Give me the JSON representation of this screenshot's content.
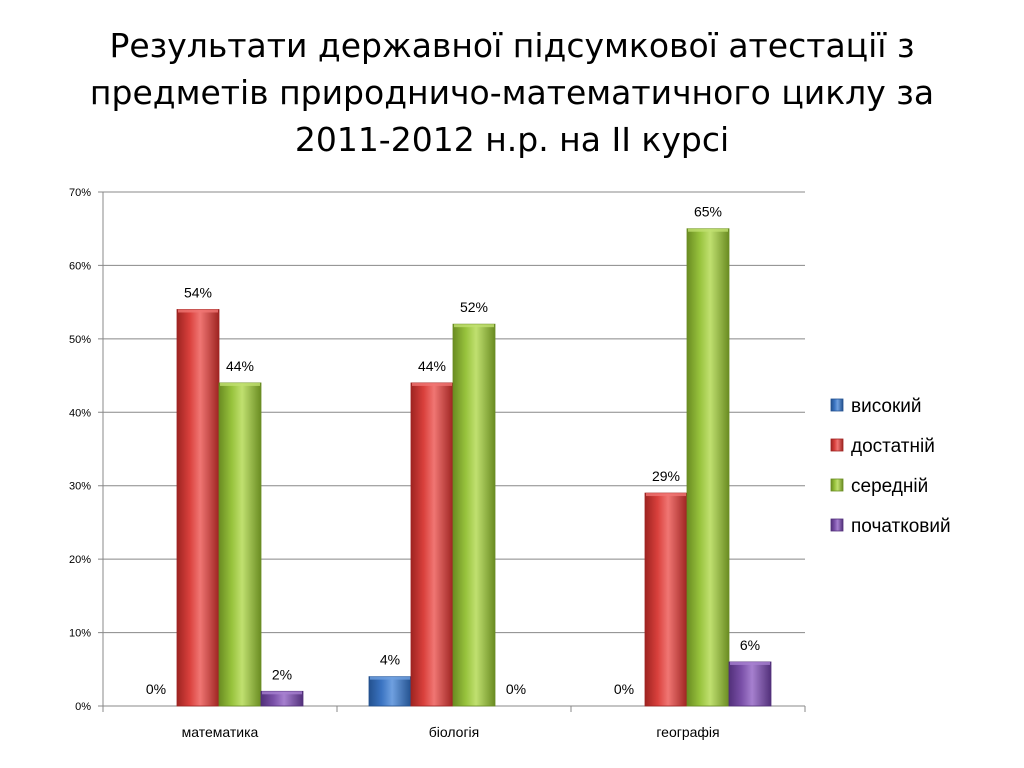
{
  "slide": {
    "title_lines": [
      "Результати державної підсумкової атестації  з",
      "предметів природничо-математичного циклу за",
      "2011-2012 н.р. на ІІ курсі"
    ]
  },
  "colors": {
    "series": [
      "#3b74c2",
      "#d9403c",
      "#97c23c",
      "#7a50a8"
    ],
    "series_dark": [
      "#23518f",
      "#9e2421",
      "#6a8c22",
      "#52307a"
    ],
    "series_light": [
      "#6fa0e0",
      "#f07673",
      "#c0e070",
      "#a680cf"
    ],
    "grid": "#888888",
    "axis": "#888888"
  },
  "chart_data": {
    "type": "bar",
    "title": "Результати державної підсумкової атестації  з предметів природничо-математичного циклу за 2011-2012 н.р. на ІІ курсі",
    "categories": [
      "математика",
      "біологія",
      "географія"
    ],
    "series": [
      {
        "name": "високий",
        "values": [
          0,
          4,
          0
        ]
      },
      {
        "name": "достатній",
        "values": [
          54,
          44,
          29
        ]
      },
      {
        "name": "середній",
        "values": [
          44,
          52,
          65
        ]
      },
      {
        "name": "початковий",
        "values": [
          2,
          0,
          6
        ]
      }
    ],
    "value_suffix": "%",
    "ylim": [
      0,
      70
    ],
    "yticks": [
      0,
      10,
      20,
      30,
      40,
      50,
      60,
      70
    ],
    "ytick_labels": [
      "0%",
      "10%",
      "20%",
      "30%",
      "40%",
      "50%",
      "60%",
      "70%"
    ],
    "grid": true,
    "legend": "right",
    "xlabel": "",
    "ylabel": ""
  }
}
